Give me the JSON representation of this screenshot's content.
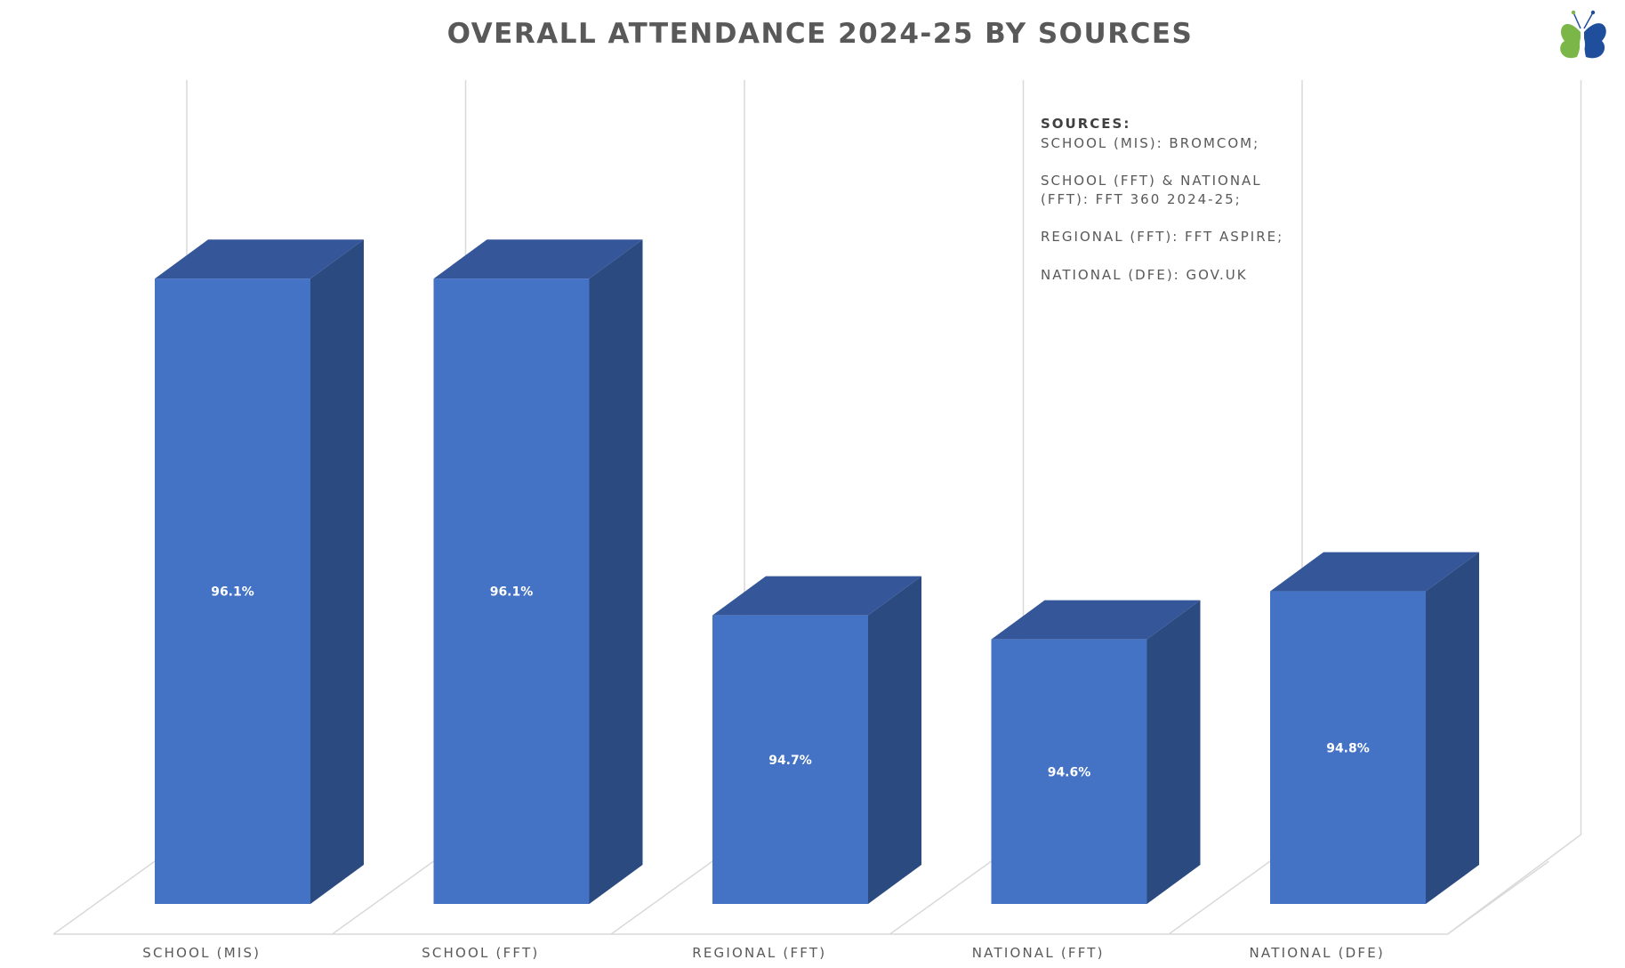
{
  "chart_data": {
    "type": "bar",
    "title": "OVERALL ATTENDANCE 2024-25 BY SOURCES",
    "categories": [
      "SCHOOL (MIS)",
      "SCHOOL (FFT)",
      "REGIONAL (FFT)",
      "NATIONAL (FFT)",
      "NATIONAL (DFE)"
    ],
    "values": [
      96.1,
      96.1,
      94.7,
      94.6,
      94.8
    ],
    "data_labels": [
      "96.1%",
      "96.1%",
      "94.7%",
      "94.6%",
      "94.8%"
    ],
    "xlabel": "",
    "ylabel": "",
    "ylim": [
      93.5,
      96.8
    ],
    "style": "3d-column",
    "grid": true,
    "legend": "none"
  },
  "sources_note": {
    "heading": "SOURCES:",
    "lines": [
      "SCHOOL (MIS): BROMCOM;",
      "SCHOOL (FFT) & NATIONAL",
      "(FFT): FFT 360 2024-25;",
      "REGIONAL (FFT): FFT ASPIRE;",
      "NATIONAL (DFE): GOV.UK"
    ]
  },
  "logo": {
    "icon": "butterfly-logo-icon"
  },
  "colors": {
    "bar_front": "#4472c4",
    "bar_side": "#2b4a80",
    "bar_top": "#35579a",
    "gridline": "#d9d9d9",
    "title": "#595959",
    "text": "#595959",
    "logo_green": "#7ab648",
    "logo_blue": "#1f4e9c"
  }
}
